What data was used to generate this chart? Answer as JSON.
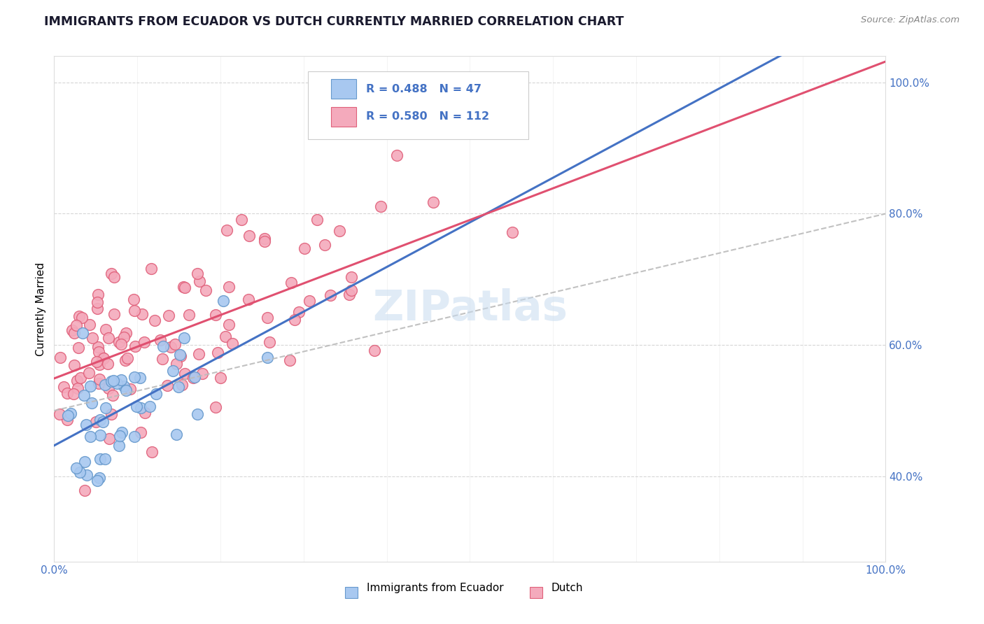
{
  "title": "IMMIGRANTS FROM ECUADOR VS DUTCH CURRENTLY MARRIED CORRELATION CHART",
  "source": "Source: ZipAtlas.com",
  "ylabel": "Currently Married",
  "ecuador_color": "#A8C8F0",
  "ecuador_edge_color": "#6699CC",
  "dutch_color": "#F4AABC",
  "dutch_edge_color": "#E0607A",
  "ecuador_line_color": "#4472C4",
  "dutch_line_color": "#E05070",
  "dash_color": "#BBBBBB",
  "ecuador_R": 0.488,
  "ecuador_N": 47,
  "dutch_R": 0.58,
  "dutch_N": 112,
  "legend_text_color": "#4472C4",
  "tick_label_color": "#4472C4",
  "grid_color": "#CCCCCC",
  "background_color": "#FFFFFF",
  "watermark_color": "#C8DCF0",
  "xlim": [
    0.0,
    1.0
  ],
  "ylim": [
    0.27,
    1.04
  ],
  "yticks": [
    0.4,
    0.6,
    0.8,
    1.0
  ],
  "xticks": [
    0.0,
    1.0
  ],
  "ytick_labels": [
    "40.0%",
    "60.0%",
    "80.0%",
    "100.0%"
  ],
  "xtick_labels": [
    "0.0%",
    "100.0%"
  ],
  "ecuador_seed": 42,
  "dutch_seed": 99
}
